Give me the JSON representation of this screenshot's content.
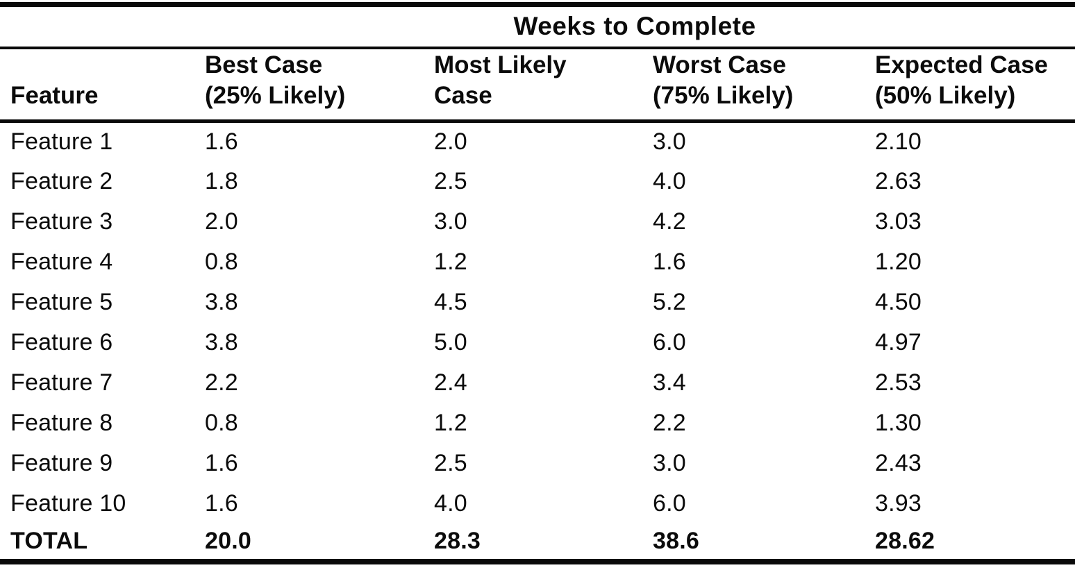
{
  "page": {
    "background_color": "#ffffff",
    "text_color": "#0b0b0b",
    "rule_color": "#0a0a0a"
  },
  "header": {
    "feature": "Feature",
    "cols": [
      {
        "line1": "Best Case",
        "line2": "(25% Likely)"
      },
      {
        "line1": "Most Likely",
        "line2": "Case"
      },
      {
        "line1": "Worst Case",
        "line2": "(75% Likely)"
      },
      {
        "line1": "Expected Case",
        "line2": "(50% Likely)"
      }
    ]
  },
  "chart_data": {
    "type": "table",
    "title": "Weeks to Complete",
    "columns": [
      "Feature",
      "Best Case (25% Likely)",
      "Most Likely Case",
      "Worst Case (75% Likely)",
      "Expected Case (50% Likely)"
    ],
    "rows": [
      [
        "Feature 1",
        "1.6",
        "2.0",
        "3.0",
        "2.10"
      ],
      [
        "Feature 2",
        "1.8",
        "2.5",
        "4.0",
        "2.63"
      ],
      [
        "Feature 3",
        "2.0",
        "3.0",
        "4.2",
        "3.03"
      ],
      [
        "Feature 4",
        "0.8",
        "1.2",
        "1.6",
        "1.20"
      ],
      [
        "Feature 5",
        "3.8",
        "4.5",
        "5.2",
        "4.50"
      ],
      [
        "Feature 6",
        "3.8",
        "5.0",
        "6.0",
        "4.97"
      ],
      [
        "Feature 7",
        "2.2",
        "2.4",
        "3.4",
        "2.53"
      ],
      [
        "Feature 8",
        "0.8",
        "1.2",
        "2.2",
        "1.30"
      ],
      [
        "Feature 9",
        "1.6",
        "2.5",
        "3.0",
        "2.43"
      ],
      [
        "Feature 10",
        "1.6",
        "4.0",
        "6.0",
        "3.93"
      ]
    ],
    "total_row": [
      "TOTAL",
      "20.0",
      "28.3",
      "38.6",
      "28.62"
    ],
    "layout": {
      "title_spans_numeric_columns": true,
      "grid": "horizontal rules only: thick top and bottom, thin under title and under column headers",
      "alignment": "all columns left-aligned",
      "total_row_bold": true
    }
  }
}
